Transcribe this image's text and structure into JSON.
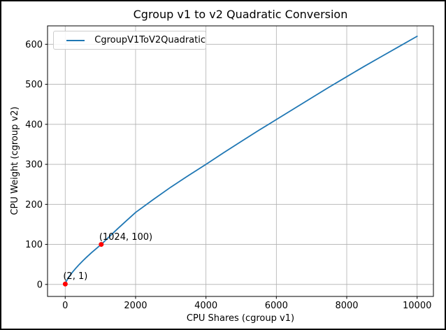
{
  "frame": {
    "border_color": "#000000",
    "background": "#ffffff"
  },
  "chart_data": {
    "type": "line",
    "title": "Cgroup v1 to v2 Quadratic Conversion",
    "xlabel": "CPU Shares (cgroup v1)",
    "ylabel": "CPU Weight (cgroup v2)",
    "grid": true,
    "legend": {
      "position": "upper left",
      "entries": [
        {
          "label": "CgroupV1ToV2Quadratic",
          "color": "#1f77b4"
        }
      ]
    },
    "x_ticks": [
      0,
      2000,
      4000,
      6000,
      8000,
      10000
    ],
    "y_ticks": [
      0,
      100,
      200,
      300,
      400,
      500,
      600
    ],
    "xlim": [
      -502,
      10463
    ],
    "ylim": [
      -30,
      646
    ],
    "series": [
      {
        "name": "CgroupV1ToV2Quadratic",
        "color": "#1f77b4",
        "line_width": 1.8,
        "points": [
          [
            2,
            1
          ],
          [
            10,
            3.3
          ],
          [
            25,
            6.5
          ],
          [
            50,
            10.8
          ],
          [
            100,
            18
          ],
          [
            150,
            24.2
          ],
          [
            200,
            30
          ],
          [
            300,
            40.4
          ],
          [
            400,
            50
          ],
          [
            500,
            58.9
          ],
          [
            600,
            67.4
          ],
          [
            750,
            79.5
          ],
          [
            900,
            90.9
          ],
          [
            1024,
            100
          ],
          [
            1250,
            119
          ],
          [
            1500,
            140
          ],
          [
            1750,
            160
          ],
          [
            2000,
            180
          ],
          [
            2500,
            212
          ],
          [
            3000,
            243
          ],
          [
            3500,
            272
          ],
          [
            4000,
            300
          ],
          [
            4500,
            329
          ],
          [
            5000,
            357
          ],
          [
            5500,
            385
          ],
          [
            6000,
            412
          ],
          [
            6500,
            439
          ],
          [
            7000,
            466
          ],
          [
            7500,
            493
          ],
          [
            8000,
            519
          ],
          [
            8500,
            545
          ],
          [
            9000,
            570
          ],
          [
            9500,
            595
          ],
          [
            10000,
            620
          ]
        ]
      }
    ],
    "markers": [
      {
        "x": 2,
        "y": 1,
        "label": "(2, 1)",
        "color": "#ff0000"
      },
      {
        "x": 1024,
        "y": 100,
        "label": "(1024, 100)",
        "color": "#ff0000"
      }
    ],
    "colors": {
      "grid": "#b0b0b0",
      "axis": "#000000",
      "text": "#000000"
    }
  }
}
